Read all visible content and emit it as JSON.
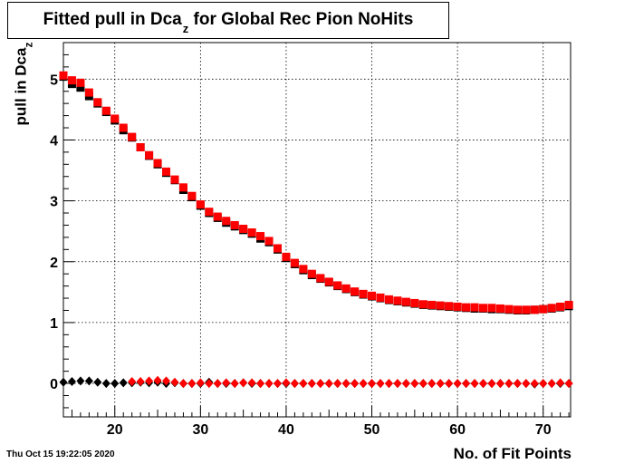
{
  "chart_data": {
    "type": "scatter",
    "title_main": "Fitted pull in Dca",
    "title_sub": "z",
    "title_rest": " for Global Rec Pion NoHits",
    "xlabel": "No. of Fit Points",
    "ylabel_main": "pull in Dca",
    "ylabel_sub": "z",
    "timestamp": "Thu Oct 15 19:22:05 2020",
    "xlim": [
      14,
      73.2
    ],
    "ylim": [
      -0.55,
      5.6
    ],
    "xticks": [
      20,
      30,
      40,
      50,
      60,
      70
    ],
    "yticks": [
      0,
      1,
      2,
      3,
      4,
      5
    ],
    "grid": true,
    "series": [
      {
        "color": "#000000",
        "marker": "square",
        "x": [
          14,
          15,
          16,
          17,
          18,
          19,
          20,
          21,
          22,
          23,
          24,
          25,
          26,
          27,
          28,
          29,
          30,
          31,
          32,
          33,
          34,
          35,
          36,
          37,
          38,
          39,
          40,
          41,
          42,
          43,
          44,
          45,
          46,
          47,
          48,
          49,
          50,
          51,
          52,
          53,
          54,
          55,
          56,
          57,
          58,
          59,
          60,
          61,
          62,
          63,
          64,
          65,
          66,
          67,
          68,
          69,
          70,
          71,
          72,
          73
        ],
        "y": [
          5.04,
          4.92,
          4.86,
          4.72,
          4.6,
          4.46,
          4.32,
          4.16,
          4.04,
          3.88,
          3.74,
          3.6,
          3.46,
          3.34,
          3.18,
          3.06,
          2.92,
          2.8,
          2.72,
          2.64,
          2.58,
          2.52,
          2.46,
          2.38,
          2.32,
          2.2,
          2.06,
          1.96,
          1.86,
          1.78,
          1.72,
          1.66,
          1.6,
          1.55,
          1.5,
          1.46,
          1.43,
          1.4,
          1.37,
          1.35,
          1.33,
          1.31,
          1.29,
          1.28,
          1.27,
          1.26,
          1.25,
          1.24,
          1.23,
          1.23,
          1.22,
          1.22,
          1.21,
          1.2,
          1.2,
          1.21,
          1.22,
          1.23,
          1.25,
          1.27
        ]
      },
      {
        "color": "#000000",
        "marker": "diamond",
        "x": [
          14,
          15,
          16,
          17,
          18,
          19,
          20,
          21,
          22,
          23,
          24,
          25,
          26,
          27,
          28,
          29,
          30,
          31,
          32,
          33,
          34,
          35,
          36,
          37,
          38,
          39,
          40,
          41,
          42,
          43,
          44,
          45,
          46,
          47,
          48,
          49,
          50,
          51,
          52,
          53,
          54,
          55,
          56,
          57,
          58,
          59,
          60,
          61,
          62,
          63,
          64,
          65,
          66,
          67,
          68,
          69,
          70,
          71,
          72,
          73
        ],
        "y": [
          0.02,
          0.03,
          0.04,
          0.04,
          0.02,
          0.0,
          0.0,
          0.01,
          0.01,
          0.02,
          0.01,
          0.02,
          0.0,
          0.01,
          0.0,
          0.0,
          0.0,
          0.02,
          0.0,
          0.0,
          0.0,
          0.01,
          0.0,
          0.0,
          0.0,
          0.0,
          0.0,
          0.0,
          0.0,
          0.0,
          0.0,
          0.0,
          0.0,
          0.0,
          0.0,
          0.0,
          0.0,
          0.0,
          0.0,
          0.0,
          0.0,
          0.0,
          0.0,
          0.0,
          0.0,
          0.0,
          0.0,
          0.0,
          0.0,
          0.0,
          0.0,
          0.0,
          0.0,
          0.0,
          0.0,
          -0.01,
          0.0,
          0.0,
          0.0,
          0.0
        ]
      },
      {
        "color": "#ff0000",
        "marker": "square",
        "x": [
          14,
          15,
          16,
          17,
          18,
          19,
          20,
          21,
          22,
          23,
          24,
          25,
          26,
          27,
          28,
          29,
          30,
          31,
          32,
          33,
          34,
          35,
          36,
          37,
          38,
          39,
          40,
          41,
          42,
          43,
          44,
          45,
          46,
          47,
          48,
          49,
          50,
          51,
          52,
          53,
          54,
          55,
          56,
          57,
          58,
          59,
          60,
          61,
          62,
          63,
          64,
          65,
          66,
          67,
          68,
          69,
          70,
          71,
          72,
          73
        ],
        "y": [
          5.06,
          4.98,
          4.94,
          4.78,
          4.62,
          4.48,
          4.35,
          4.2,
          4.05,
          3.88,
          3.75,
          3.62,
          3.48,
          3.35,
          3.22,
          3.08,
          2.94,
          2.82,
          2.74,
          2.67,
          2.6,
          2.54,
          2.48,
          2.42,
          2.34,
          2.22,
          2.08,
          1.98,
          1.88,
          1.8,
          1.73,
          1.67,
          1.61,
          1.56,
          1.51,
          1.47,
          1.44,
          1.41,
          1.38,
          1.36,
          1.34,
          1.32,
          1.3,
          1.29,
          1.28,
          1.27,
          1.26,
          1.25,
          1.25,
          1.24,
          1.24,
          1.23,
          1.22,
          1.21,
          1.21,
          1.21,
          1.22,
          1.24,
          1.26,
          1.29
        ]
      },
      {
        "color": "#ff0000",
        "marker": "diamond",
        "x": [
          22,
          23,
          24,
          25,
          26,
          27,
          28,
          29,
          30,
          31,
          32,
          33,
          34,
          35,
          36,
          37,
          38,
          39,
          40,
          41,
          42,
          43,
          44,
          45,
          46,
          47,
          48,
          49,
          50,
          51,
          52,
          53,
          54,
          55,
          56,
          57,
          58,
          59,
          60,
          61,
          62,
          63,
          64,
          65,
          66,
          67,
          68,
          69,
          70,
          71,
          72,
          73
        ],
        "y": [
          0.03,
          0.03,
          0.04,
          0.05,
          0.04,
          0.02,
          0.0,
          0.0,
          0.01,
          0.0,
          0.0,
          0.01,
          0.0,
          0.01,
          0.01,
          0.0,
          0.0,
          0.0,
          0.01,
          0.0,
          0.0,
          0.0,
          0.0,
          0.0,
          0.0,
          0.0,
          0.0,
          0.0,
          0.0,
          0.0,
          0.0,
          0.0,
          0.0,
          0.0,
          0.0,
          0.0,
          0.0,
          0.0,
          0.0,
          0.0,
          0.0,
          0.0,
          0.0,
          0.0,
          0.0,
          0.0,
          0.0,
          0.0,
          0.0,
          0.0,
          0.01,
          0.0
        ]
      }
    ]
  }
}
